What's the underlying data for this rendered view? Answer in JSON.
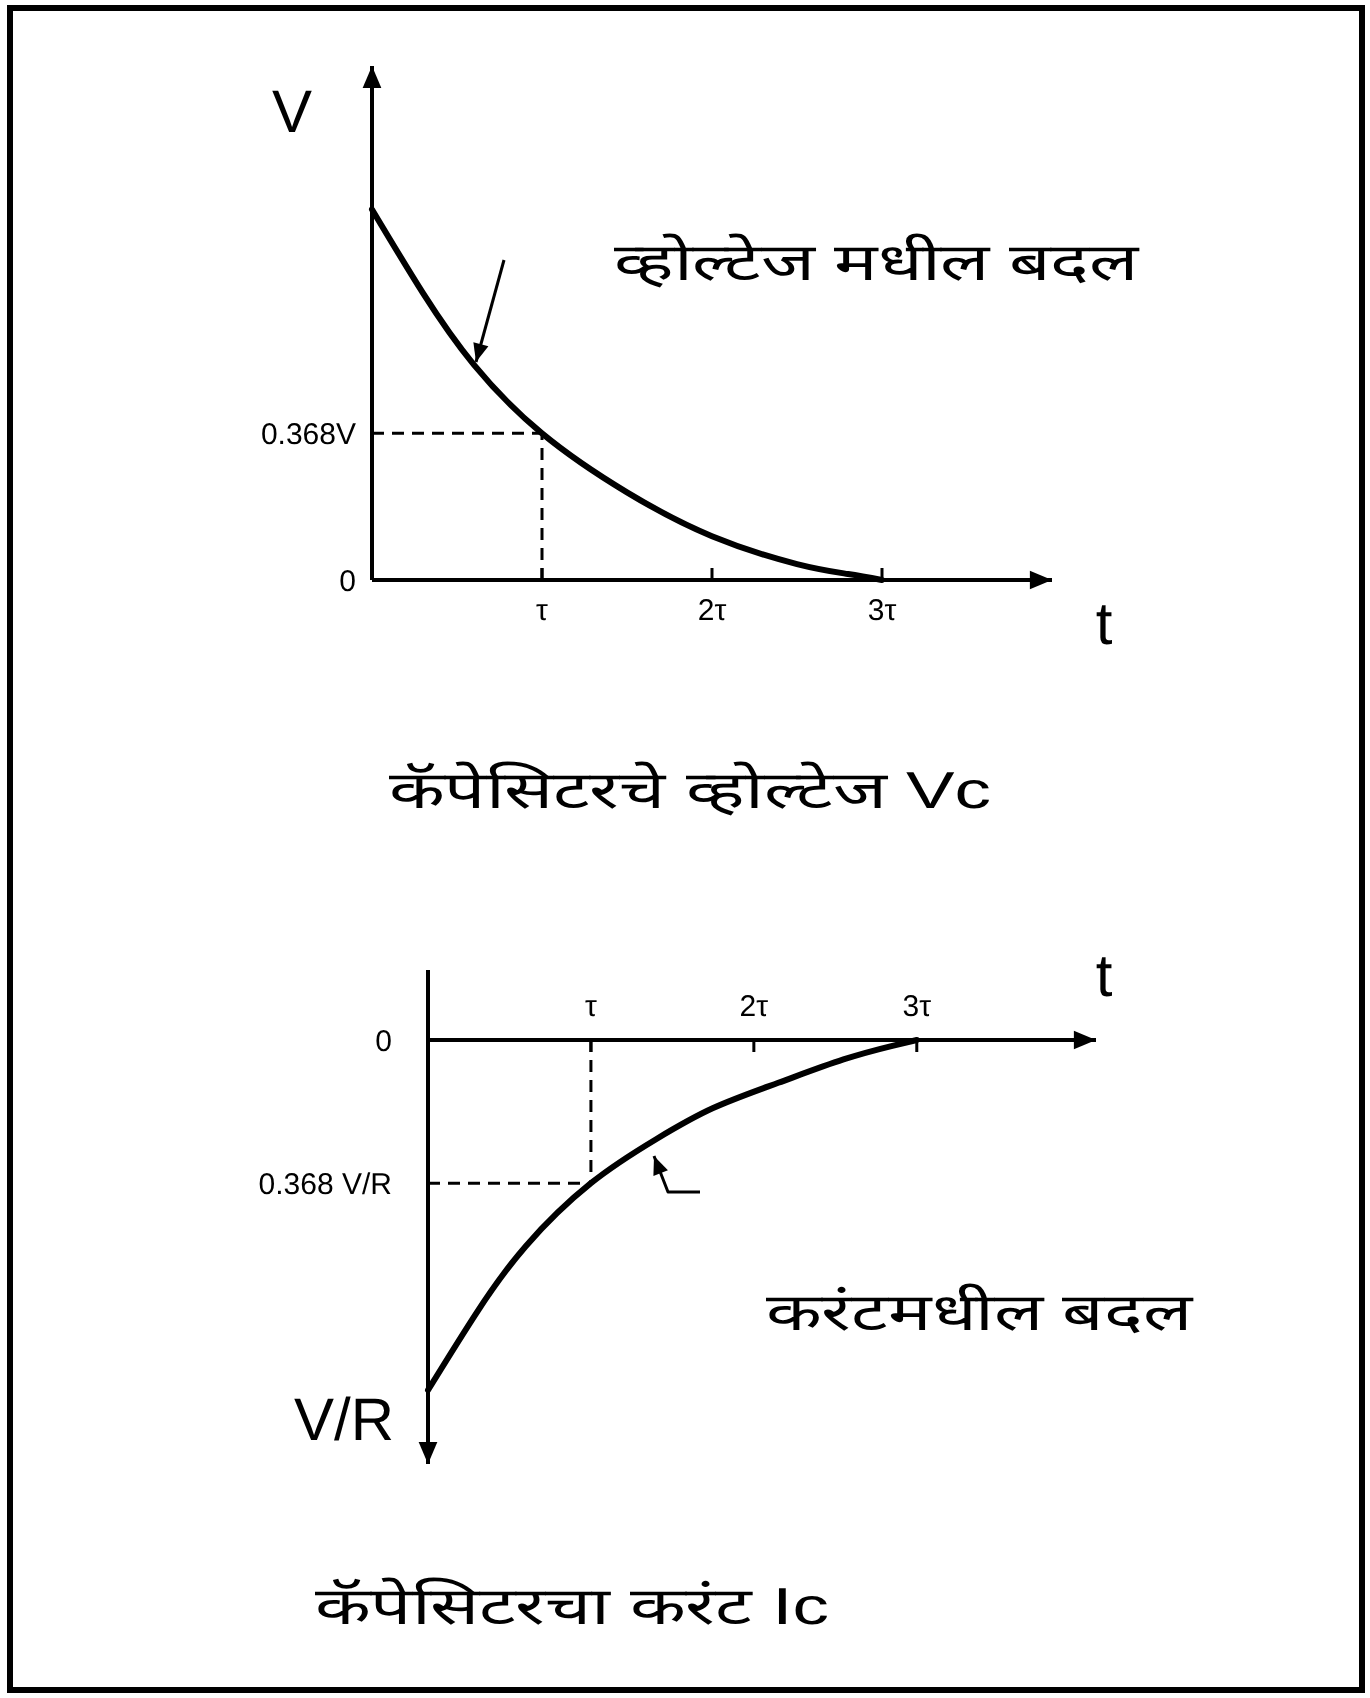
{
  "chart_data": [
    {
      "type": "line",
      "title": "कॅपेसिटरचे व्होल्टेज Vc",
      "xlabel": "t",
      "ylabel": "V",
      "x": [
        0,
        0.3,
        0.6,
        1,
        1.5,
        2,
        2.5,
        2.8,
        3
      ],
      "series": [
        {
          "color": "#000000",
          "values": [
            0.93,
            0.72,
            0.54,
            0.368,
            0.22,
            0.11,
            0.04,
            0.015,
            0
          ]
        }
      ],
      "xlim": [
        0,
        4
      ],
      "ylim": [
        0,
        1.29
      ],
      "xticks": [
        {
          "value": 1,
          "label": "τ"
        },
        {
          "value": 2,
          "label": "2τ"
        },
        {
          "value": 3,
          "label": "3τ"
        }
      ],
      "yticks": [
        0,
        {
          "value": 0.368,
          "label": "0.368V"
        }
      ],
      "ref_lines": [
        {
          "axis": "y",
          "value": 0.368,
          "line_style": "dashed"
        },
        {
          "axis": "x",
          "value": 1,
          "line_style": "dashed"
        }
      ],
      "annotations": [
        "व्होल्टेज मधील बदल"
      ]
    },
    {
      "type": "line",
      "title": "कॅपेसिटरचा करंट Ic",
      "xlabel": "t",
      "ylabel": "V/R",
      "x": [
        0,
        0.3,
        0.6,
        1,
        1.4,
        1.75,
        2.15,
        2.55,
        2.85,
        3
      ],
      "series": [
        {
          "color": "#000000",
          "values": [
            -0.9,
            -0.7,
            -0.53,
            -0.368,
            -0.255,
            -0.175,
            -0.11,
            -0.05,
            -0.015,
            0
          ]
        }
      ],
      "xlim": [
        0,
        4.1
      ],
      "ylim": [
        -1.09,
        0.18
      ],
      "xticks": [
        {
          "value": 1,
          "label": "τ"
        },
        {
          "value": 2,
          "label": "2τ"
        },
        {
          "value": 3,
          "label": "3τ"
        }
      ],
      "yticks": [
        {
          "value": -0.368,
          "label": "0.368 V/R"
        },
        0
      ],
      "ref_lines": [
        {
          "axis": "y",
          "value": -0.368,
          "line_style": "dashed"
        },
        {
          "axis": "x",
          "value": 1,
          "line_style": "dashed"
        }
      ],
      "annotations": [
        "करंटमधील बदल"
      ]
    }
  ]
}
